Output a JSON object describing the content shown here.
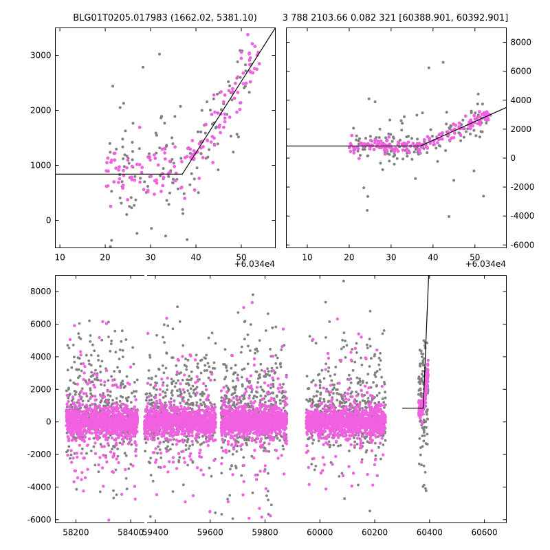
{
  "colors": {
    "background": "#ffffff",
    "axes": "#000000",
    "gray_points": "#808080",
    "magenta_points": "#f060e0",
    "model_line": "#000000"
  },
  "chart_data": [
    {
      "id": "panel-top-left",
      "type": "scatter",
      "title": "BLG01T0205.017983 (1662.02, 5381.10)",
      "xlabel": "",
      "ylabel": "",
      "x_offset_label": "+6.034e4",
      "xlim": [
        9,
        57.5
      ],
      "ylim": [
        -500,
        3500
      ],
      "x_ticks": [
        10,
        20,
        30,
        40,
        50
      ],
      "y_ticks": [
        0,
        1000,
        2000,
        3000
      ],
      "y_axis_side": "left",
      "grid": false,
      "legend": "none",
      "model": [
        [
          9,
          840
        ],
        [
          37,
          840
        ],
        [
          57.5,
          3500
        ]
      ],
      "series": [
        {
          "color": "gray",
          "seed": 11,
          "n": 140,
          "x_range": [
            21,
            53
          ],
          "y_base": 840,
          "break_x": 37,
          "slope": 130,
          "y_sd": 480,
          "outlier_frac": 0.1,
          "outlier_range": [
            -600,
            3500
          ]
        },
        {
          "color": "magenta",
          "seed": 23,
          "n": 150,
          "x_range": [
            20,
            54
          ],
          "y_base": 840,
          "break_x": 37,
          "slope": 130,
          "y_sd": 260,
          "outlier_frac": 0,
          "outlier_range": [
            0,
            0
          ]
        }
      ]
    },
    {
      "id": "panel-top-right",
      "type": "scatter",
      "title": "3 788 2103.66 0.082 321 [60388.901, 60392.901]",
      "xlabel": "",
      "ylabel": "",
      "x_offset_label": "+6.034e4",
      "xlim": [
        5,
        57.5
      ],
      "ylim": [
        -6200,
        9000
      ],
      "x_ticks": [
        10,
        20,
        30,
        40,
        50
      ],
      "y_ticks": [
        -6000,
        -4000,
        -2000,
        0,
        2000,
        4000,
        6000,
        8000
      ],
      "y_axis_side": "right",
      "grid": false,
      "legend": "none",
      "model": [
        [
          5,
          840
        ],
        [
          37,
          840
        ],
        [
          57.5,
          3500
        ]
      ],
      "series": [
        {
          "color": "gray",
          "seed": 37,
          "n": 150,
          "x_range": [
            21,
            53
          ],
          "y_base": 840,
          "break_x": 37,
          "slope": 130,
          "y_sd": 650,
          "outlier_frac": 0.12,
          "outlier_range": [
            -4500,
            7200
          ]
        },
        {
          "color": "magenta",
          "seed": 41,
          "n": 170,
          "x_range": [
            20,
            54
          ],
          "y_base": 840,
          "break_x": 37,
          "slope": 130,
          "y_sd": 260,
          "outlier_frac": 0,
          "outlier_range": [
            0,
            0
          ]
        }
      ]
    },
    {
      "id": "panel-bottom",
      "type": "scatter",
      "title": "",
      "xlabel": "",
      "ylabel": "",
      "x_offset_label": "",
      "xlim": [
        58125,
        60680
      ],
      "ylim": [
        -6200,
        9000
      ],
      "x_ticks": [
        58200,
        58400,
        59400,
        59600,
        59800,
        60000,
        60200,
        60400,
        60600
      ],
      "y_ticks": [
        -6000,
        -4000,
        -2000,
        0,
        2000,
        4000,
        6000,
        8000
      ],
      "y_axis_side": "left",
      "grid": false,
      "legend": "none",
      "axis_break": {
        "x_from": 58450,
        "x_to": 59370
      },
      "model": [
        [
          60300,
          840
        ],
        [
          60377,
          840
        ],
        [
          60397.5,
          9300
        ]
      ],
      "seasons": [
        {
          "x_range": [
            58165,
            58425
          ],
          "seed": 101
        },
        {
          "x_range": [
            59360,
            59620
          ],
          "seed": 202
        },
        {
          "x_range": [
            59640,
            59880
          ],
          "seed": 303
        },
        {
          "x_range": [
            59950,
            60240
          ],
          "seed": 404
        }
      ],
      "event": {
        "x_range": [
          60360,
          60395
        ],
        "seed": 505
      }
    }
  ]
}
